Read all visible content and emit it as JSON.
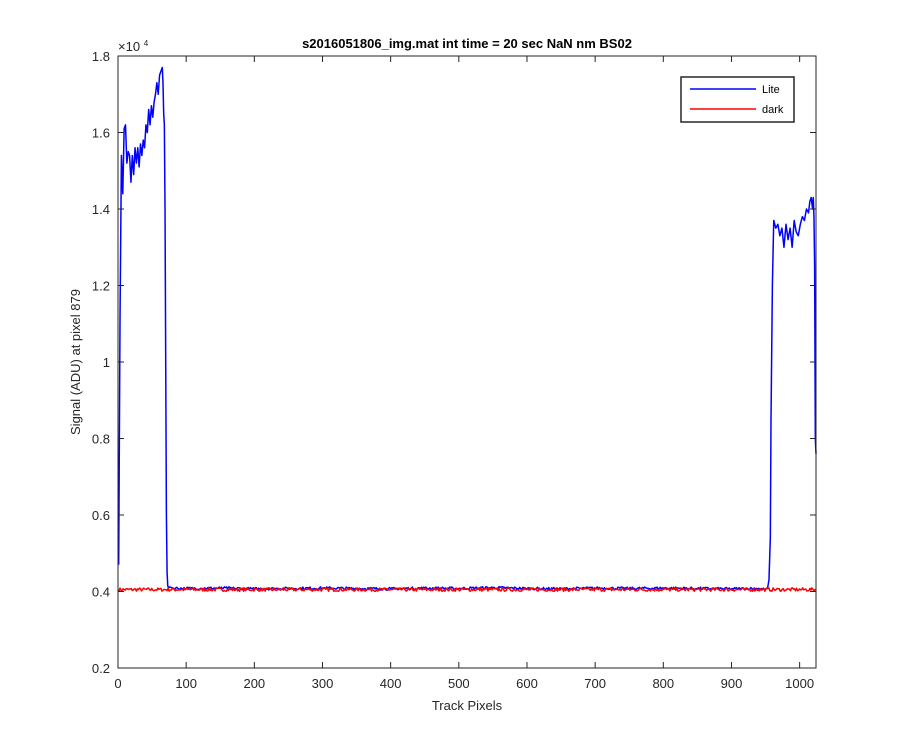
{
  "chart_data": {
    "type": "line",
    "title": "s2016051806_img.mat int time = 20 sec  NaN nm BS02",
    "xlabel": "Track Pixels",
    "ylabel": "Signal (ADU) at pixel 879",
    "y_exponent_label": "×10",
    "y_exponent_power": "4",
    "xlim": [
      0,
      1024
    ],
    "ylim": [
      2000,
      18000
    ],
    "x_ticks": [
      0,
      100,
      200,
      300,
      400,
      500,
      600,
      700,
      800,
      900,
      1000
    ],
    "x_tick_labels": [
      "0",
      "100",
      "200",
      "300",
      "400",
      "500",
      "600",
      "700",
      "800",
      "900",
      "1000"
    ],
    "y_ticks": [
      2000,
      4000,
      6000,
      8000,
      10000,
      12000,
      14000,
      16000,
      18000
    ],
    "y_tick_labels": [
      "0.2",
      "0.4",
      "0.6",
      "0.8",
      "1",
      "1.2",
      "1.4",
      "1.6",
      "1.8"
    ],
    "grid": false,
    "legend_position": "top-right",
    "series": [
      {
        "name": "Lite",
        "color": "#0000ff",
        "x": [
          1,
          3,
          5,
          7,
          9,
          11,
          13,
          15,
          17,
          19,
          21,
          23,
          25,
          27,
          29,
          31,
          33,
          35,
          37,
          39,
          41,
          43,
          45,
          47,
          49,
          51,
          53,
          55,
          57,
          59,
          61,
          63,
          65,
          66,
          67,
          68,
          69,
          70,
          71,
          72,
          73,
          74,
          76,
          80,
          100,
          150,
          200,
          250,
          300,
          350,
          400,
          450,
          500,
          550,
          600,
          650,
          700,
          750,
          800,
          850,
          900,
          940,
          950,
          953,
          955,
          957,
          958,
          960,
          962,
          965,
          968,
          971,
          974,
          977,
          980,
          983,
          986,
          989,
          992,
          995,
          998,
          1001,
          1004,
          1007,
          1010,
          1013,
          1015,
          1017,
          1019,
          1020,
          1021,
          1022,
          1023,
          1024
        ],
        "y": [
          4700,
          11200,
          15400,
          14400,
          16100,
          16200,
          15200,
          15500,
          15400,
          14700,
          15400,
          14900,
          15600,
          15200,
          15600,
          15100,
          15700,
          15400,
          15800,
          15600,
          16200,
          16000,
          16600,
          16200,
          16700,
          16400,
          16800,
          17000,
          17300,
          17000,
          17500,
          17600,
          17700,
          17300,
          16500,
          16200,
          14000,
          10000,
          6000,
          4500,
          4150,
          4100,
          4120,
          4090,
          4080,
          4090,
          4070,
          4080,
          4090,
          4080,
          4070,
          4090,
          4080,
          4100,
          4080,
          4070,
          4090,
          4080,
          4090,
          4080,
          4070,
          4080,
          4060,
          4090,
          4300,
          5400,
          8500,
          12000,
          13700,
          13500,
          13600,
          13300,
          13500,
          13000,
          13600,
          13200,
          13500,
          13000,
          13700,
          13400,
          13300,
          13600,
          13800,
          13700,
          14000,
          13900,
          14200,
          14300,
          14000,
          14300,
          13800,
          12500,
          8000,
          7600
        ]
      },
      {
        "name": "dark",
        "color": "#ff0000",
        "x": [
          0,
          1024
        ],
        "y": [
          4050,
          4050
        ]
      }
    ]
  }
}
